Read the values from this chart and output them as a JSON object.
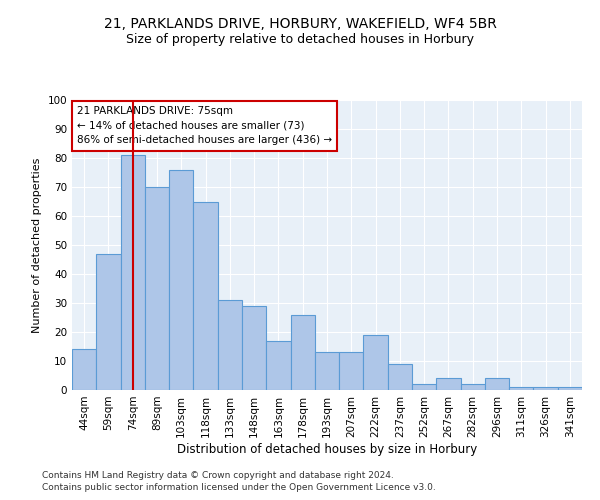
{
  "title1": "21, PARKLANDS DRIVE, HORBURY, WAKEFIELD, WF4 5BR",
  "title2": "Size of property relative to detached houses in Horbury",
  "xlabel": "Distribution of detached houses by size in Horbury",
  "ylabel": "Number of detached properties",
  "categories": [
    "44sqm",
    "59sqm",
    "74sqm",
    "89sqm",
    "103sqm",
    "118sqm",
    "133sqm",
    "148sqm",
    "163sqm",
    "178sqm",
    "193sqm",
    "207sqm",
    "222sqm",
    "237sqm",
    "252sqm",
    "267sqm",
    "282sqm",
    "296sqm",
    "311sqm",
    "326sqm",
    "341sqm"
  ],
  "values": [
    14,
    47,
    81,
    70,
    76,
    65,
    31,
    29,
    17,
    26,
    13,
    13,
    19,
    9,
    2,
    4,
    2,
    4,
    1,
    1,
    1
  ],
  "bar_color": "#aec6e8",
  "bar_edge_color": "#5b9bd5",
  "marker_bin_index": 2,
  "marker_color": "#cc0000",
  "annotation_text": "21 PARKLANDS DRIVE: 75sqm\n← 14% of detached houses are smaller (73)\n86% of semi-detached houses are larger (436) →",
  "annotation_box_color": "#ffffff",
  "annotation_box_edge": "#cc0000",
  "ylim": [
    0,
    100
  ],
  "yticks": [
    0,
    10,
    20,
    30,
    40,
    50,
    60,
    70,
    80,
    90,
    100
  ],
  "plot_bg_color": "#e8f0f8",
  "footer1": "Contains HM Land Registry data © Crown copyright and database right 2024.",
  "footer2": "Contains public sector information licensed under the Open Government Licence v3.0.",
  "title1_fontsize": 10,
  "title2_fontsize": 9,
  "xlabel_fontsize": 8.5,
  "ylabel_fontsize": 8,
  "tick_fontsize": 7.5,
  "annotation_fontsize": 7.5,
  "footer_fontsize": 6.5
}
